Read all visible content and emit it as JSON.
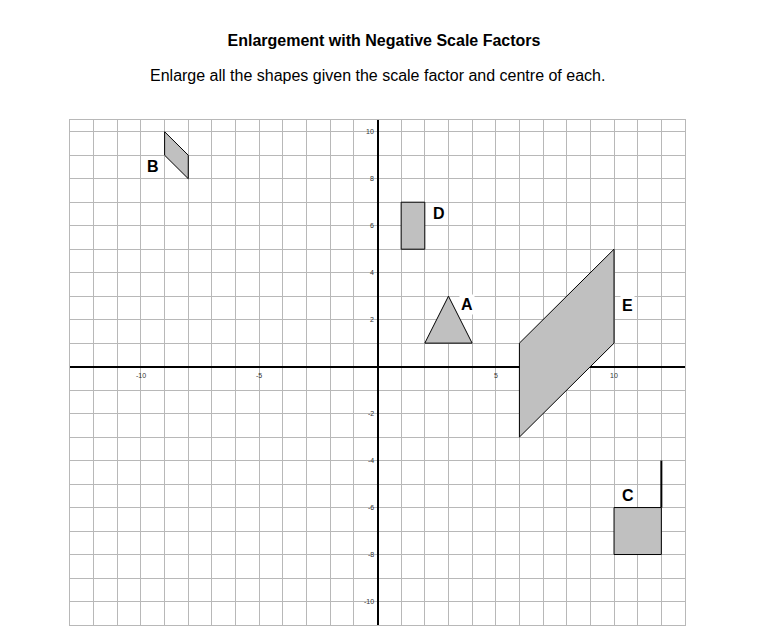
{
  "chart_data": {
    "type": "scatter",
    "title": "Enlargement with Negative Scale Factors",
    "subtitle": "Enlarge all the shapes given the scale factor and centre of each.",
    "xlim": [
      -13,
      13
    ],
    "ylim": [
      -11,
      10.5
    ],
    "xticks": [
      -10,
      -5,
      5,
      10
    ],
    "yticks": [
      -10,
      -8,
      -6,
      -4,
      -2,
      2,
      4,
      6,
      8,
      10
    ],
    "grid": true,
    "series": [
      {
        "name": "A",
        "type": "polygon",
        "color": "#c0c0c0",
        "x": [
          2,
          4,
          3
        ],
        "y": [
          1,
          1,
          3
        ]
      },
      {
        "name": "B",
        "type": "polygon",
        "color": "#c0c0c0",
        "x": [
          -9,
          -8,
          -8,
          -9
        ],
        "y": [
          10,
          9,
          8,
          9
        ]
      },
      {
        "name": "C",
        "type": "polygon",
        "color": "#c0c0c0",
        "x": [
          10,
          12,
          12,
          10
        ],
        "y": [
          -6,
          -6,
          -8,
          -8
        ]
      },
      {
        "name": "D",
        "type": "polygon",
        "color": "#c0c0c0",
        "x": [
          1,
          2,
          2,
          1
        ],
        "y": [
          7,
          7,
          5,
          5
        ]
      },
      {
        "name": "E",
        "type": "polygon",
        "color": "#c0c0c0",
        "x": [
          6,
          10,
          10,
          6
        ],
        "y": [
          1,
          5,
          1,
          -3
        ]
      },
      {
        "type": "line",
        "color": "#000000",
        "x": [
          12,
          12
        ],
        "y": [
          -4,
          -6
        ]
      }
    ]
  }
}
